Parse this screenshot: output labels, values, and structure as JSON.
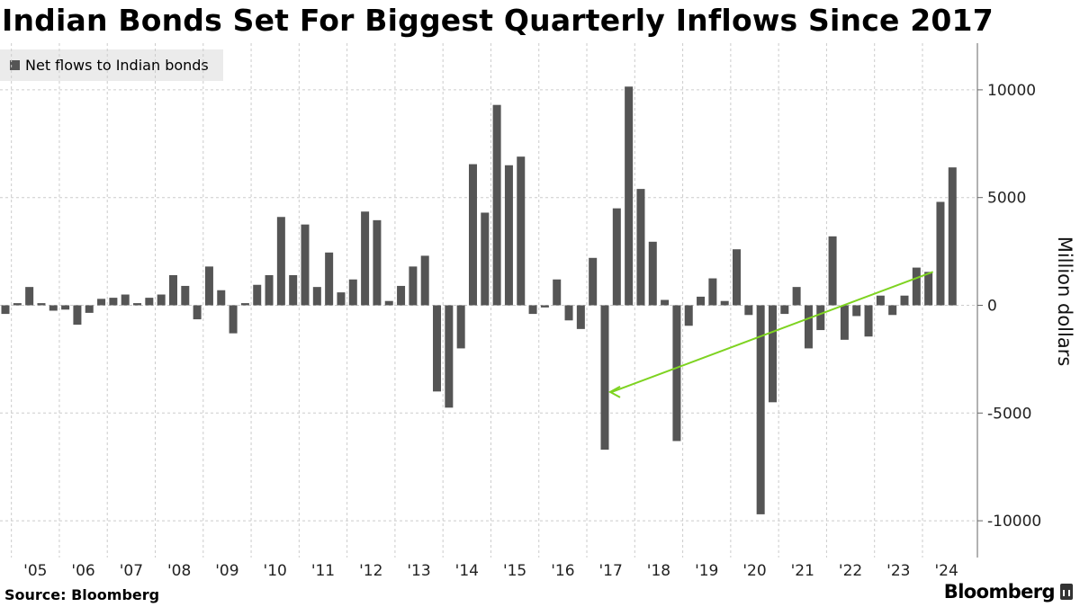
{
  "header": {
    "title": "Indian Bonds Set For Biggest Quarterly Inflows Since 2017"
  },
  "legend": {
    "label": "Net flows to Indian bonds"
  },
  "footer": {
    "source": "Source: Bloomberg",
    "brand": "Bloomberg"
  },
  "colors": {
    "bar": "#555555",
    "arrow": "#7ed321",
    "grid": "#cccccc",
    "axis": "#666666"
  },
  "chart_data": {
    "type": "bar",
    "title": "Indian Bonds Set For Biggest Quarterly Inflows Since 2017",
    "xlabel": "",
    "ylabel": "Million dollars",
    "ylim": [
      -12000,
      12000
    ],
    "yticks": [
      10000,
      5000,
      0,
      -5000,
      -10000
    ],
    "ytick_labels": [
      "10000",
      "5000",
      "0",
      "-5000",
      "-10000"
    ],
    "xticks": [
      "'05",
      "'06",
      "'07",
      "'08",
      "'09",
      "'10",
      "'11",
      "'12",
      "'13",
      "'14",
      "'15",
      "'16",
      "'17",
      "'18",
      "'19",
      "'20",
      "'21",
      "'22",
      "'23",
      "'24"
    ],
    "first_period": "2004-Q4",
    "grid": true,
    "legend_position": "top-left",
    "annotation": {
      "type": "arrow",
      "description": "green arrow from latest quarter (2024 Q1) back to 2017 Q2",
      "from_index": 77,
      "to_index": 50
    },
    "series": [
      {
        "name": "Net flows to Indian bonds",
        "values": [
          -400,
          100,
          850,
          100,
          -250,
          -200,
          -900,
          -350,
          300,
          350,
          500,
          100,
          350,
          500,
          1400,
          900,
          -650,
          1800,
          700,
          -1300,
          100,
          950,
          1400,
          4100,
          1400,
          3750,
          850,
          2450,
          600,
          1200,
          4350,
          3950,
          200,
          900,
          1800,
          2300,
          -4000,
          -4750,
          -2000,
          6550,
          4300,
          9300,
          6500,
          6900,
          -400,
          -100,
          1200,
          -700,
          -1100,
          2200,
          -6700,
          4500,
          10150,
          5400,
          2950,
          250,
          -6300,
          -950,
          400,
          1250,
          200,
          2600,
          -450,
          -9700,
          -4500,
          -400,
          850,
          -2000,
          -1150,
          3200,
          -1600,
          -500,
          -1450,
          450,
          -450,
          450,
          1750,
          1550,
          4800,
          6400
        ]
      }
    ]
  }
}
